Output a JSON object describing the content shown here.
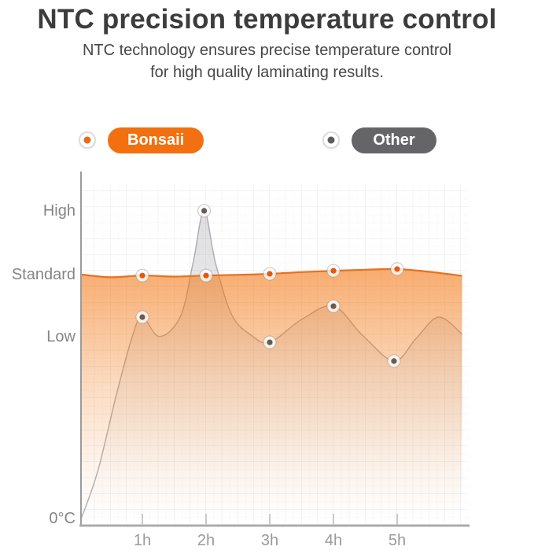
{
  "header": {
    "title": "NTC precision temperature control",
    "subtitle_line1": "NTC technology ensures precise temperature control",
    "subtitle_line2": "for high quality laminating results."
  },
  "legend": {
    "items": [
      {
        "label": "Bonsaii",
        "pill_color": "#f2700f",
        "dot_color": "#ed6a14"
      },
      {
        "label": "Other",
        "pill_color": "#656568",
        "dot_color": "#5c5c60"
      }
    ]
  },
  "chart_data": {
    "type": "area",
    "title": "",
    "x_unit": "hours",
    "grid": true,
    "legend_position": "top",
    "ylim": [
      0,
      10
    ],
    "xlim_hours": [
      0.04,
      6.02
    ],
    "y_levels": [
      {
        "label": "High",
        "v": 9.24,
        "dy": 0
      },
      {
        "label": "Standard",
        "v": 7.37,
        "dy": 0
      },
      {
        "label": "Low",
        "v": 5.54,
        "dy": 0
      },
      {
        "label": "0°C",
        "v": 0,
        "dy": -9
      }
    ],
    "x_ticks": [
      {
        "label": "1h",
        "h": 1
      },
      {
        "label": "2h",
        "h": 2
      },
      {
        "label": "3h",
        "h": 3
      },
      {
        "label": "4h",
        "h": 4
      },
      {
        "label": "5h",
        "h": 5
      }
    ],
    "series": [
      {
        "name": "Bonsaii",
        "line_color": "#e8701f",
        "fill_color": "#f2740e",
        "fill_opacity_top": 0.6,
        "marker_dot_color": "#e05a12",
        "points": [
          [
            0.04,
            7.37
          ],
          [
            0.5,
            7.29
          ],
          [
            1,
            7.34
          ],
          [
            1.5,
            7.31
          ],
          [
            2,
            7.34
          ],
          [
            2.5,
            7.36
          ],
          [
            3,
            7.39
          ],
          [
            3.5,
            7.44
          ],
          [
            4,
            7.48
          ],
          [
            4.5,
            7.51
          ],
          [
            5,
            7.53
          ],
          [
            5.5,
            7.45
          ],
          [
            6.02,
            7.33
          ]
        ],
        "markers": [
          [
            1,
            7.34
          ],
          [
            2,
            7.34
          ],
          [
            3,
            7.39
          ],
          [
            4,
            7.48
          ],
          [
            5,
            7.53
          ]
        ]
      },
      {
        "name": "Other",
        "line_color": "rgba(148,148,156,0.75)",
        "fill_color": "#8d8d96",
        "fill_opacity_top": 0.3,
        "marker_dot_color": "rgba(66,55,48,0.8)",
        "points": [
          [
            0.04,
            0.2
          ],
          [
            0.3,
            1.6
          ],
          [
            0.6,
            3.9
          ],
          [
            0.85,
            5.6
          ],
          [
            1,
            6.12
          ],
          [
            1.27,
            5.55
          ],
          [
            1.6,
            6.15
          ],
          [
            1.8,
            7.75
          ],
          [
            1.97,
            9.24
          ],
          [
            2.15,
            7.7
          ],
          [
            2.4,
            6.2
          ],
          [
            2.7,
            5.6
          ],
          [
            3,
            5.38
          ],
          [
            3.5,
            6.05
          ],
          [
            4,
            6.44
          ],
          [
            4.45,
            5.6
          ],
          [
            4.95,
            4.83
          ],
          [
            5.3,
            5.5
          ],
          [
            5.65,
            6.12
          ],
          [
            6.02,
            5.62
          ]
        ],
        "markers": [
          [
            1,
            6.12
          ],
          [
            1.97,
            9.24
          ],
          [
            3,
            5.38
          ],
          [
            4,
            6.44
          ],
          [
            4.95,
            4.83
          ]
        ]
      }
    ]
  }
}
